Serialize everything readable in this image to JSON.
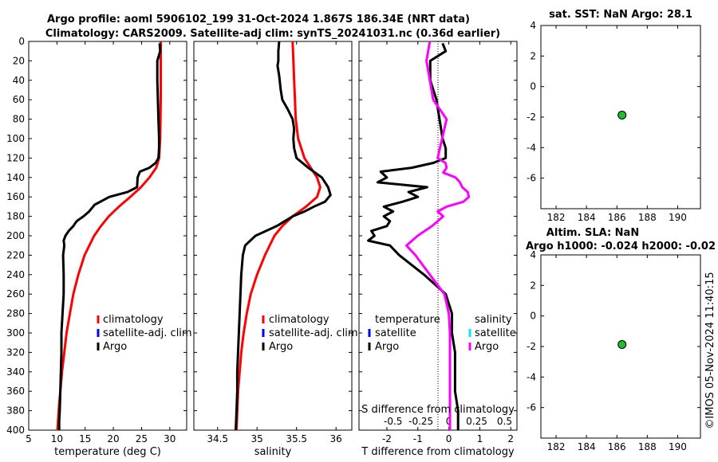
{
  "titles": {
    "line1": "Argo profile: aoml 5906102_199 31-Oct-2024 1.867S 186.34E (NRT data)",
    "line2": "Climatology: CARS2009. Satellite-adj clim: synTS_20241031.nc (0.36d earlier)"
  },
  "colors": {
    "climatology": "#ff0000",
    "satellite": "#0000ff",
    "argo": "#000000",
    "satellite_s": "#00e5ff",
    "salinity_diff": "#ff00ff",
    "dot": "#22bb33"
  },
  "depth_axis": {
    "ylim": [
      0,
      400
    ],
    "ticks": [
      "0",
      "20",
      "40",
      "60",
      "80",
      "100",
      "120",
      "140",
      "160",
      "180",
      "200",
      "220",
      "240",
      "260",
      "280",
      "300",
      "320",
      "340",
      "360",
      "380",
      "400"
    ]
  },
  "chart_data": [
    {
      "type": "line",
      "name": "temperature",
      "xlabel": "temperature (deg C)",
      "xlim": [
        5,
        33
      ],
      "xticks": [
        5,
        10,
        15,
        20,
        25,
        30
      ],
      "legend": [
        "climatology",
        "satellite-adj. clim",
        "Argo"
      ],
      "series": [
        {
          "name": "climatology",
          "color": "#ff0000",
          "depth": [
            0,
            20,
            60,
            100,
            120,
            130,
            140,
            150,
            160,
            170,
            180,
            190,
            200,
            220,
            240,
            260,
            280,
            300,
            320,
            340,
            360,
            380,
            400
          ],
          "values": [
            28.4,
            28.4,
            28.4,
            28.3,
            28.1,
            27.6,
            26.4,
            24.9,
            23.0,
            21.0,
            19.2,
            17.8,
            16.6,
            14.9,
            13.8,
            12.9,
            12.3,
            11.7,
            11.3,
            10.9,
            10.6,
            10.3,
            10.1
          ]
        },
        {
          "name": "Argo",
          "color": "#000000",
          "depth": [
            2,
            10,
            20,
            40,
            60,
            80,
            100,
            110,
            120,
            125,
            130,
            134,
            140,
            150,
            155,
            160,
            168,
            175,
            180,
            185,
            190,
            195,
            200,
            205,
            210,
            220,
            240,
            260,
            280,
            300,
            320,
            340,
            360,
            380,
            390,
            400
          ],
          "values": [
            28.2,
            28.3,
            27.8,
            27.8,
            27.9,
            28.0,
            28.1,
            28.1,
            28.0,
            27.5,
            26.4,
            24.7,
            24.3,
            24.2,
            22.5,
            19.3,
            16.7,
            15.7,
            14.7,
            13.5,
            12.9,
            12.1,
            11.5,
            11.2,
            11.3,
            11.1,
            11.2,
            11.2,
            11.0,
            10.8,
            10.8,
            10.7,
            10.6,
            10.5,
            10.4,
            10.4
          ]
        }
      ]
    },
    {
      "type": "line",
      "name": "salinity",
      "xlabel": "salinity",
      "xlim": [
        34.2,
        36.2
      ],
      "xticks": [
        34.5,
        35,
        35.5,
        36
      ],
      "legend": [
        "climatology",
        "satellite-adj. clim",
        "Argo"
      ],
      "series": [
        {
          "name": "climatology",
          "color": "#ff0000",
          "depth": [
            0,
            40,
            80,
            100,
            120,
            130,
            140,
            150,
            160,
            170,
            180,
            190,
            200,
            220,
            240,
            260,
            280,
            300,
            320,
            340,
            360,
            380,
            400
          ],
          "values": [
            35.45,
            35.47,
            35.49,
            35.52,
            35.6,
            35.68,
            35.76,
            35.8,
            35.76,
            35.62,
            35.45,
            35.32,
            35.22,
            35.1,
            35.0,
            34.92,
            34.87,
            34.83,
            34.8,
            34.78,
            34.76,
            34.75,
            34.74
          ]
        },
        {
          "name": "Argo",
          "color": "#000000",
          "depth": [
            0,
            10,
            20,
            25,
            35,
            50,
            60,
            70,
            80,
            90,
            100,
            110,
            120,
            130,
            140,
            150,
            158,
            165,
            170,
            175,
            180,
            190,
            200,
            210,
            220,
            240,
            260,
            280,
            300,
            320,
            340,
            360,
            380,
            400
          ],
          "values": [
            35.28,
            35.27,
            35.27,
            35.26,
            35.28,
            35.3,
            35.32,
            35.39,
            35.45,
            35.47,
            35.46,
            35.47,
            35.5,
            35.65,
            35.82,
            35.9,
            35.93,
            35.86,
            35.72,
            35.6,
            35.45,
            35.25,
            34.98,
            34.85,
            34.82,
            34.8,
            34.79,
            34.78,
            34.77,
            34.76,
            34.75,
            34.75,
            34.74,
            34.73
          ]
        }
      ]
    },
    {
      "type": "line",
      "name": "difference",
      "xlabel": "T difference from climatology",
      "xlim": [
        -2.9,
        2.2
      ],
      "xticks": [
        -2,
        -1,
        0,
        1,
        2
      ],
      "xlabel_top": "S difference from climatology",
      "xticks_top": [
        "-0.5",
        "-0.25",
        "0",
        "0.25",
        "0.5"
      ],
      "legend_temperature": [
        "temperature",
        "satellite",
        "Argo"
      ],
      "legend_salinity": [
        "salinity",
        "satellite",
        "Argo"
      ],
      "series": [
        {
          "name": "Argo T diff",
          "color": "#000000",
          "depth": [
            2,
            10,
            20,
            40,
            60,
            80,
            100,
            110,
            120,
            125,
            130,
            134,
            140,
            145,
            150,
            155,
            160,
            165,
            170,
            175,
            180,
            185,
            190,
            195,
            200,
            205,
            210,
            220,
            240,
            260,
            280,
            300,
            320,
            340,
            360,
            380,
            400
          ],
          "values": [
            -0.2,
            -0.1,
            -0.6,
            -0.6,
            -0.4,
            -0.3,
            -0.2,
            -0.1,
            -0.1,
            -0.5,
            -1.2,
            -2.2,
            -2.0,
            -2.3,
            -0.7,
            -1.3,
            -1.0,
            -1.5,
            -2.1,
            -1.8,
            -2.1,
            -1.9,
            -2.0,
            -2.5,
            -2.4,
            -2.6,
            -1.9,
            -1.6,
            -0.8,
            -0.1,
            0.1,
            0.1,
            0.2,
            0.2,
            0.2,
            0.3,
            0.3
          ]
        },
        {
          "name": "Argo S diff",
          "color": "#ff00ff",
          "depth": [
            0,
            20,
            40,
            60,
            80,
            100,
            110,
            120,
            125,
            130,
            135,
            140,
            145,
            150,
            155,
            160,
            165,
            170,
            175,
            180,
            190,
            200,
            210,
            220,
            240,
            260,
            280,
            300,
            320,
            340,
            360,
            380,
            400
          ],
          "values": [
            -0.17,
            -0.2,
            -0.17,
            -0.14,
            -0.02,
            -0.06,
            -0.08,
            -0.1,
            -0.03,
            -0.02,
            -0.05,
            0.06,
            0.1,
            0.12,
            0.17,
            0.18,
            0.13,
            -0.02,
            -0.1,
            -0.05,
            -0.15,
            -0.28,
            -0.38,
            -0.3,
            -0.17,
            -0.04,
            0.0,
            0.01,
            0.01,
            0.01,
            0.01,
            0.01,
            0.01
          ]
        }
      ]
    },
    {
      "type": "scatter",
      "name": "sst",
      "title": "sat. SST: NaN Argo: 28.1",
      "xlim": [
        181,
        191.5
      ],
      "ylim": [
        -8,
        4
      ],
      "xticks": [
        182,
        184,
        186,
        188,
        190
      ],
      "yticks": [
        4,
        2,
        0,
        -2,
        -4,
        -6
      ],
      "points": [
        {
          "x": 186.34,
          "y": -1.867
        }
      ]
    },
    {
      "type": "scatter",
      "name": "sla",
      "title": "Altim. SLA: NaN",
      "title2": "Argo h1000: -0.024 h2000: -0.02",
      "xlim": [
        181,
        191.5
      ],
      "ylim": [
        -8,
        4
      ],
      "xticks": [
        182,
        184,
        186,
        188,
        190
      ],
      "yticks": [
        4,
        2,
        0,
        -2,
        -4,
        -6
      ],
      "points": [
        {
          "x": 186.34,
          "y": -1.867
        }
      ]
    }
  ],
  "stamp": "©IMOS 05-Nov-2024 11:40:15"
}
